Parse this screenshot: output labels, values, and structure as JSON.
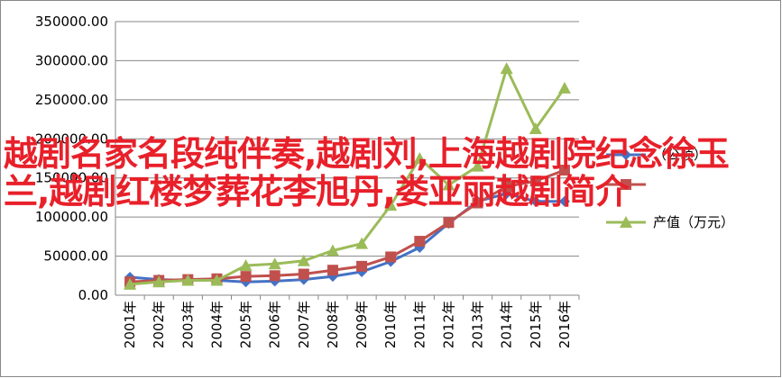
{
  "chart_data": {
    "type": "line",
    "categories": [
      "2001年",
      "2002年",
      "2003年",
      "2004年",
      "2005年",
      "2006年",
      "2007年",
      "2008年",
      "2009年",
      "2010年",
      "2011年",
      "2012年",
      "2013年",
      "2014年",
      "2015年",
      "2016年"
    ],
    "series": [
      {
        "name": "（公顷）",
        "color": "#4472c4",
        "marker": "diamond",
        "values": [
          23000,
          20000,
          19000,
          19000,
          17000,
          18000,
          20000,
          24000,
          30000,
          43000,
          61000,
          92000,
          120000,
          130000,
          120000,
          120000
        ]
      },
      {
        "color": "#c0504d",
        "marker": "square",
        "values": [
          17000,
          19000,
          20000,
          21000,
          24000,
          25000,
          27000,
          32000,
          37000,
          49000,
          69000,
          93000,
          118000,
          139000,
          146000,
          160000
        ]
      },
      {
        "name": "产值（万元）",
        "color": "#9bbb59",
        "marker": "triangle",
        "values": [
          14000,
          17000,
          19000,
          19000,
          38000,
          40000,
          44000,
          57000,
          66000,
          115000,
          175000,
          141000,
          165000,
          290000,
          213000,
          265000
        ]
      }
    ],
    "ylim": [
      0,
      350000
    ],
    "yticks": [
      {
        "value": 0,
        "label": "0.00"
      },
      {
        "value": 50000,
        "label": "50000.00"
      },
      {
        "value": 100000,
        "label": "100000.00"
      },
      {
        "value": 150000,
        "label": "150000.00"
      },
      {
        "value": 200000,
        "label": "200000.00"
      },
      {
        "value": 250000,
        "label": "250000.00"
      },
      {
        "value": 300000,
        "label": "300000.00"
      },
      {
        "value": 350000,
        "label": "350000.00"
      }
    ],
    "grid": true
  },
  "overlay_text": "越剧名家名段纯伴奏,越剧刘,上海越剧院纪念徐玉兰,越剧红楼梦葬花李旭丹,娄亚丽越剧简介"
}
